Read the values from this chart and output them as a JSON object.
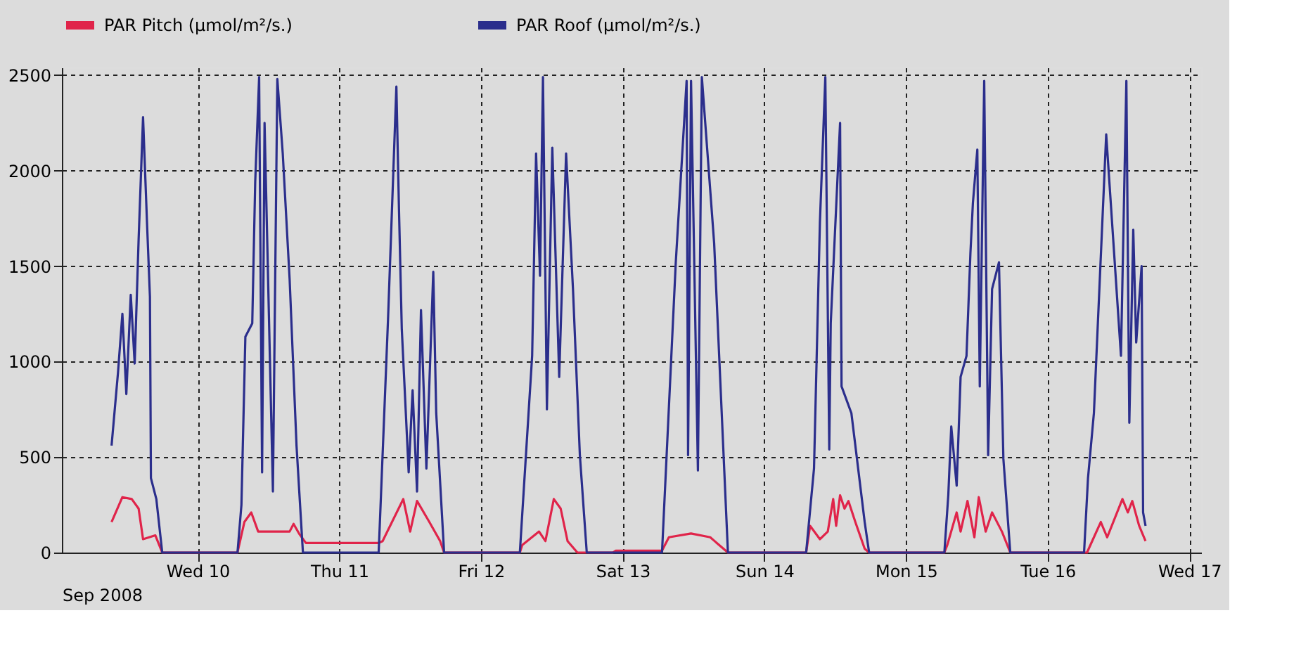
{
  "chart_data": {
    "type": "line",
    "xlabel": "Sep 2008",
    "xlim": [
      "2008-09-09T01:00",
      "2008-09-17T02:00"
    ],
    "xticks": [
      {
        "value": "2008-09-10T00:00",
        "label": "Wed 10"
      },
      {
        "value": "2008-09-11T00:00",
        "label": "Thu 11"
      },
      {
        "value": "2008-09-12T00:00",
        "label": "Fri 12"
      },
      {
        "value": "2008-09-13T00:00",
        "label": "Sat 13"
      },
      {
        "value": "2008-09-14T00:00",
        "label": "Sun 14"
      },
      {
        "value": "2008-09-15T00:00",
        "label": "Mon 15"
      },
      {
        "value": "2008-09-16T00:00",
        "label": "Tue 16"
      },
      {
        "value": "2008-09-17T00:00",
        "label": "Wed 17"
      }
    ],
    "ylim": [
      0,
      2540
    ],
    "yticks": [
      0,
      500,
      1000,
      1500,
      2000,
      2500
    ],
    "grid": true,
    "legend": "top",
    "series": [
      {
        "name": "PAR Pitch (µmol/m²/s.)",
        "color": "#e0244a",
        "x": [
          "2008-09-09T09:25",
          "2008-09-09T11:15",
          "2008-09-09T12:50",
          "2008-09-09T14:00",
          "2008-09-09T14:45",
          "2008-09-09T16:50",
          "2008-09-09T18:00",
          "2008-09-10T06:45",
          "2008-09-10T07:55",
          "2008-09-10T09:05",
          "2008-09-10T10:15",
          "2008-09-10T15:35",
          "2008-09-10T16:15",
          "2008-09-10T17:10",
          "2008-09-10T18:20",
          "2008-09-11T06:40",
          "2008-09-11T07:20",
          "2008-09-11T10:50",
          "2008-09-11T12:00",
          "2008-09-11T13:10",
          "2008-09-11T15:15",
          "2008-09-11T17:05",
          "2008-09-11T17:45",
          "2008-09-12T06:35",
          "2008-09-12T07:00",
          "2008-09-12T09:50",
          "2008-09-12T10:55",
          "2008-09-12T12:20",
          "2008-09-12T13:30",
          "2008-09-12T14:40",
          "2008-09-12T16:20",
          "2008-09-12T22:20",
          "2008-09-12T22:50",
          "2008-09-13T06:40",
          "2008-09-13T07:50",
          "2008-09-13T11:35",
          "2008-09-13T14:50",
          "2008-09-13T17:50",
          "2008-09-14T07:05",
          "2008-09-14T07:45",
          "2008-09-14T09:25",
          "2008-09-14T10:45",
          "2008-09-14T11:40",
          "2008-09-14T12:10",
          "2008-09-14T12:50",
          "2008-09-14T13:35",
          "2008-09-14T14:15",
          "2008-09-14T15:25",
          "2008-09-14T17:00",
          "2008-09-14T17:45",
          "2008-09-15T06:30",
          "2008-09-15T07:00",
          "2008-09-15T08:35",
          "2008-09-15T09:15",
          "2008-09-15T10:25",
          "2008-09-15T11:35",
          "2008-09-15T12:20",
          "2008-09-15T13:30",
          "2008-09-15T14:35",
          "2008-09-15T16:15",
          "2008-09-15T17:40",
          "2008-09-16T06:40",
          "2008-09-16T07:50",
          "2008-09-16T09:00",
          "2008-09-16T10:05",
          "2008-09-16T12:40",
          "2008-09-16T13:35",
          "2008-09-16T14:20",
          "2008-09-16T15:30",
          "2008-09-16T16:35"
        ],
        "values": [
          160,
          290,
          280,
          230,
          70,
          90,
          0,
          0,
          160,
          210,
          110,
          110,
          150,
          100,
          50,
          50,
          60,
          280,
          110,
          270,
          160,
          60,
          0,
          0,
          40,
          110,
          60,
          280,
          230,
          60,
          0,
          0,
          10,
          10,
          80,
          100,
          80,
          0,
          0,
          140,
          70,
          110,
          280,
          140,
          300,
          230,
          270,
          160,
          20,
          0,
          0,
          40,
          210,
          110,
          270,
          80,
          290,
          110,
          210,
          110,
          0,
          0,
          80,
          160,
          80,
          280,
          210,
          270,
          140,
          60
        ]
      },
      {
        "name": "PAR Roof (µmol/m²/s.)",
        "color": "#2b2e8c",
        "x": [
          "2008-09-09T09:25",
          "2008-09-09T10:30",
          "2008-09-09T11:15",
          "2008-09-09T11:55",
          "2008-09-09T12:40",
          "2008-09-09T13:20",
          "2008-09-09T14:00",
          "2008-09-09T14:45",
          "2008-09-09T15:25",
          "2008-09-09T15:55",
          "2008-09-09T16:05",
          "2008-09-09T17:00",
          "2008-09-09T18:00",
          "2008-09-10T06:45",
          "2008-09-10T07:25",
          "2008-09-10T08:05",
          "2008-09-10T09:15",
          "2008-09-10T09:45",
          "2008-09-10T10:25",
          "2008-09-10T10:55",
          "2008-09-10T11:20",
          "2008-09-10T12:45",
          "2008-09-10T13:30",
          "2008-09-10T14:25",
          "2008-09-10T15:35",
          "2008-09-10T16:45",
          "2008-09-10T17:50",
          "2008-09-11T06:40",
          "2008-09-11T08:15",
          "2008-09-11T09:40",
          "2008-09-11T10:05",
          "2008-09-11T10:35",
          "2008-09-11T11:45",
          "2008-09-11T12:25",
          "2008-09-11T13:10",
          "2008-09-11T13:50",
          "2008-09-11T14:45",
          "2008-09-11T15:55",
          "2008-09-11T16:25",
          "2008-09-11T17:45",
          "2008-09-12T06:35",
          "2008-09-12T08:40",
          "2008-09-12T09:20",
          "2008-09-12T10:00",
          "2008-09-12T10:30",
          "2008-09-12T11:10",
          "2008-09-12T12:05",
          "2008-09-12T13:15",
          "2008-09-12T14:25",
          "2008-09-12T15:35",
          "2008-09-12T16:45",
          "2008-09-12T17:55",
          "2008-09-13T06:40",
          "2008-09-13T09:00",
          "2008-09-13T10:50",
          "2008-09-13T11:05",
          "2008-09-13T11:35",
          "2008-09-13T12:45",
          "2008-09-13T13:25",
          "2008-09-13T15:30",
          "2008-09-13T17:50",
          "2008-09-14T07:05",
          "2008-09-14T08:25",
          "2008-09-14T09:25",
          "2008-09-14T10:20",
          "2008-09-14T11:00",
          "2008-09-14T11:15",
          "2008-09-14T12:50",
          "2008-09-14T13:05",
          "2008-09-14T14:45",
          "2008-09-14T17:00",
          "2008-09-14T17:45",
          "2008-09-15T06:30",
          "2008-09-15T07:10",
          "2008-09-15T07:40",
          "2008-09-15T08:35",
          "2008-09-15T09:15",
          "2008-09-15T10:15",
          "2008-09-15T10:55",
          "2008-09-15T11:20",
          "2008-09-15T12:05",
          "2008-09-15T12:30",
          "2008-09-15T13:15",
          "2008-09-15T13:55",
          "2008-09-15T14:35",
          "2008-09-15T15:45",
          "2008-09-15T16:30",
          "2008-09-15T17:40",
          "2008-09-16T06:10",
          "2008-09-16T06:50",
          "2008-09-16T07:50",
          "2008-09-16T09:55",
          "2008-09-16T12:25",
          "2008-09-16T13:20",
          "2008-09-16T13:50",
          "2008-09-16T14:30",
          "2008-09-16T15:00",
          "2008-09-16T15:55",
          "2008-09-16T16:10",
          "2008-09-16T16:35"
        ],
        "values": [
          560,
          940,
          1250,
          830,
          1350,
          990,
          1640,
          2280,
          1730,
          1340,
          390,
          280,
          0,
          0,
          250,
          1130,
          1200,
          1940,
          2490,
          420,
          2250,
          320,
          2480,
          2090,
          1430,
          560,
          0,
          0,
          1220,
          2440,
          1830,
          1170,
          420,
          850,
          320,
          1270,
          440,
          1470,
          730,
          0,
          0,
          1030,
          2090,
          1450,
          2490,
          750,
          2120,
          920,
          2090,
          1380,
          510,
          0,
          0,
          1520,
          2470,
          510,
          2470,
          430,
          2490,
          1620,
          0,
          0,
          440,
          1730,
          2490,
          540,
          1200,
          2250,
          870,
          730,
          160,
          0,
          0,
          300,
          660,
          350,
          920,
          1030,
          1570,
          1830,
          2110,
          870,
          2470,
          510,
          1380,
          1520,
          490,
          0,
          0,
          390,
          730,
          2190,
          1030,
          2470,
          680,
          1690,
          1100,
          1500,
          210,
          140
        ]
      }
    ]
  }
}
